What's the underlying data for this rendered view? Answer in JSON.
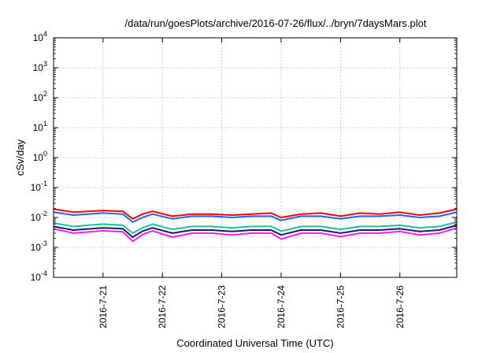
{
  "chart_data": {
    "type": "line",
    "title": "/data/run/goesPlots/archive/2016-07-26/flux/../bryn/7daysMars.plot",
    "xlabel": "Coordinated Universal Time (UTC)",
    "ylabel": "cSv/day",
    "yscale": "log",
    "ylim": [
      0.0001,
      10000
    ],
    "xlim": [
      "2016-07-20T04:00",
      "2016-07-26T23:00"
    ],
    "x_ticks": [
      "2016-7-21",
      "2016-7-22",
      "2016-7-23",
      "2016-7-24",
      "2016-7-25",
      "2016-7-26"
    ],
    "y_ticks": [
      {
        "base": "10",
        "exp": "-4"
      },
      {
        "base": "10",
        "exp": "-3"
      },
      {
        "base": "10",
        "exp": "-2"
      },
      {
        "base": "10",
        "exp": "-1"
      },
      {
        "base": "10",
        "exp": "0"
      },
      {
        "base": "10",
        "exp": "1"
      },
      {
        "base": "10",
        "exp": "2"
      },
      {
        "base": "10",
        "exp": "3"
      },
      {
        "base": "10",
        "exp": "4"
      }
    ],
    "grid": true,
    "series": [
      {
        "color": "#ff0000",
        "x": [
          "2016-07-20T04:00",
          "2016-07-20T12:00",
          "2016-07-21T00:00",
          "2016-07-21T08:00",
          "2016-07-21T12:00",
          "2016-07-21T16:00",
          "2016-07-21T20:00",
          "2016-07-22T04:00",
          "2016-07-22T12:00",
          "2016-07-22T20:00",
          "2016-07-23T04:00",
          "2016-07-23T12:00",
          "2016-07-23T20:00",
          "2016-07-24T00:00",
          "2016-07-24T08:00",
          "2016-07-24T16:00",
          "2016-07-25T00:00",
          "2016-07-25T08:00",
          "2016-07-25T16:00",
          "2016-07-26T00:00",
          "2016-07-26T08:00",
          "2016-07-26T16:00",
          "2016-07-26T23:00"
        ],
        "values": [
          0.019,
          0.015,
          0.017,
          0.016,
          0.009,
          0.013,
          0.016,
          0.011,
          0.013,
          0.013,
          0.012,
          0.013,
          0.014,
          0.01,
          0.013,
          0.014,
          0.011,
          0.014,
          0.013,
          0.015,
          0.012,
          0.014,
          0.019
        ]
      },
      {
        "color": "#1a66ff",
        "x": [
          "2016-07-20T04:00",
          "2016-07-20T12:00",
          "2016-07-21T00:00",
          "2016-07-21T08:00",
          "2016-07-21T12:00",
          "2016-07-21T16:00",
          "2016-07-21T20:00",
          "2016-07-22T04:00",
          "2016-07-22T12:00",
          "2016-07-22T20:00",
          "2016-07-23T04:00",
          "2016-07-23T12:00",
          "2016-07-23T20:00",
          "2016-07-24T00:00",
          "2016-07-24T08:00",
          "2016-07-24T16:00",
          "2016-07-25T00:00",
          "2016-07-25T08:00",
          "2016-07-25T16:00",
          "2016-07-26T00:00",
          "2016-07-26T08:00",
          "2016-07-26T16:00",
          "2016-07-26T23:00"
        ],
        "values": [
          0.015,
          0.012,
          0.014,
          0.013,
          0.007,
          0.01,
          0.013,
          0.009,
          0.011,
          0.011,
          0.01,
          0.011,
          0.011,
          0.008,
          0.011,
          0.011,
          0.009,
          0.011,
          0.011,
          0.012,
          0.01,
          0.011,
          0.015
        ]
      },
      {
        "color": "#1fbf9f",
        "x": [
          "2016-07-20T04:00",
          "2016-07-20T12:00",
          "2016-07-21T00:00",
          "2016-07-21T08:00",
          "2016-07-21T12:00",
          "2016-07-21T16:00",
          "2016-07-21T20:00",
          "2016-07-22T04:00",
          "2016-07-22T12:00",
          "2016-07-22T20:00",
          "2016-07-23T04:00",
          "2016-07-23T12:00",
          "2016-07-23T20:00",
          "2016-07-24T00:00",
          "2016-07-24T08:00",
          "2016-07-24T16:00",
          "2016-07-25T00:00",
          "2016-07-25T08:00",
          "2016-07-25T16:00",
          "2016-07-26T00:00",
          "2016-07-26T08:00",
          "2016-07-26T16:00",
          "2016-07-26T23:00"
        ],
        "values": [
          0.0065,
          0.005,
          0.006,
          0.0055,
          0.003,
          0.0045,
          0.006,
          0.004,
          0.005,
          0.005,
          0.0045,
          0.005,
          0.005,
          0.0035,
          0.005,
          0.005,
          0.004,
          0.005,
          0.005,
          0.0055,
          0.0045,
          0.005,
          0.007
        ]
      },
      {
        "color": "#1a1a66",
        "x": [
          "2016-07-20T04:00",
          "2016-07-20T12:00",
          "2016-07-21T00:00",
          "2016-07-21T08:00",
          "2016-07-21T12:00",
          "2016-07-21T16:00",
          "2016-07-21T20:00",
          "2016-07-22T04:00",
          "2016-07-22T12:00",
          "2016-07-22T20:00",
          "2016-07-23T04:00",
          "2016-07-23T12:00",
          "2016-07-23T20:00",
          "2016-07-24T00:00",
          "2016-07-24T08:00",
          "2016-07-24T16:00",
          "2016-07-25T00:00",
          "2016-07-25T08:00",
          "2016-07-25T16:00",
          "2016-07-26T00:00",
          "2016-07-26T08:00",
          "2016-07-26T16:00",
          "2016-07-26T23:00"
        ],
        "values": [
          0.005,
          0.0038,
          0.0045,
          0.0042,
          0.0022,
          0.0035,
          0.0045,
          0.003,
          0.0038,
          0.0038,
          0.0034,
          0.0038,
          0.0038,
          0.0026,
          0.0038,
          0.0038,
          0.003,
          0.0038,
          0.0038,
          0.0042,
          0.0034,
          0.0038,
          0.0055
        ]
      },
      {
        "color": "#ff1aff",
        "x": [
          "2016-07-20T04:00",
          "2016-07-20T12:00",
          "2016-07-21T00:00",
          "2016-07-21T08:00",
          "2016-07-21T12:00",
          "2016-07-21T16:00",
          "2016-07-21T20:00",
          "2016-07-22T04:00",
          "2016-07-22T12:00",
          "2016-07-22T20:00",
          "2016-07-23T04:00",
          "2016-07-23T12:00",
          "2016-07-23T20:00",
          "2016-07-24T00:00",
          "2016-07-24T08:00",
          "2016-07-24T16:00",
          "2016-07-25T00:00",
          "2016-07-25T08:00",
          "2016-07-25T16:00",
          "2016-07-26T00:00",
          "2016-07-26T08:00",
          "2016-07-26T16:00",
          "2016-07-26T23:00"
        ],
        "values": [
          0.0042,
          0.003,
          0.0036,
          0.0033,
          0.0016,
          0.0027,
          0.0036,
          0.0022,
          0.003,
          0.003,
          0.0026,
          0.003,
          0.003,
          0.0019,
          0.003,
          0.003,
          0.0023,
          0.003,
          0.003,
          0.0034,
          0.0026,
          0.003,
          0.0045
        ]
      }
    ]
  }
}
